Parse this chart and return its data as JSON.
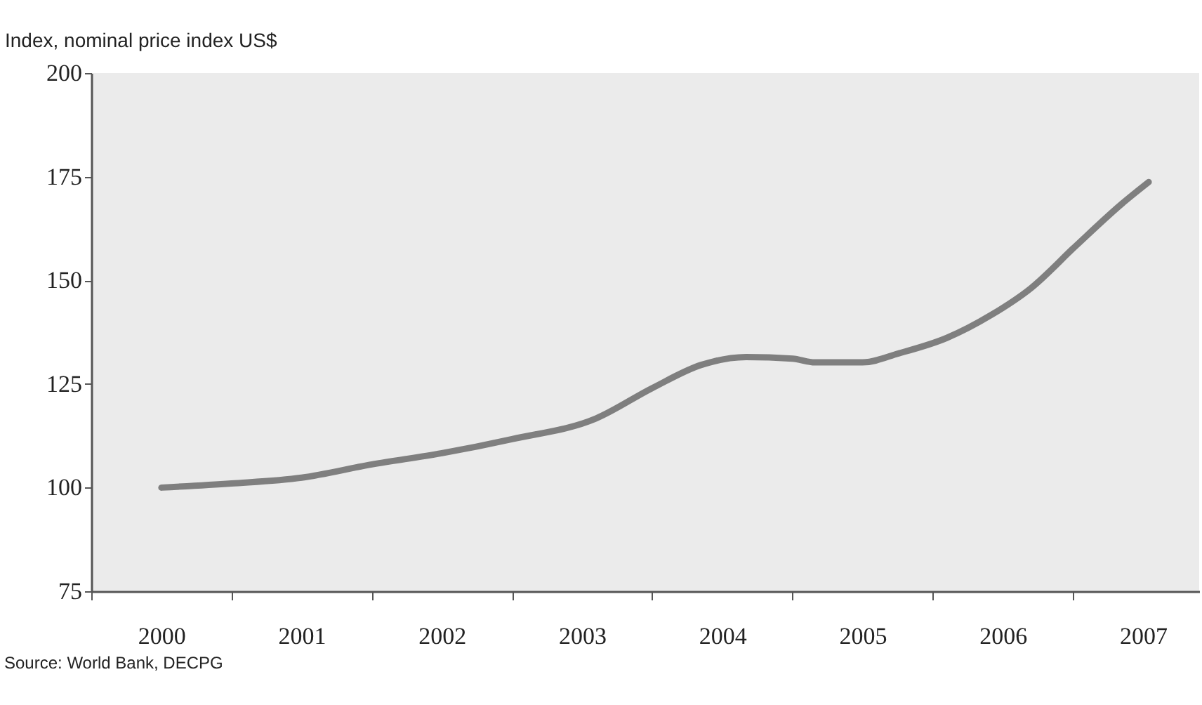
{
  "chart_data": {
    "type": "line",
    "ylabel": "Index, nominal price index US$",
    "annotations": [
      "Source: World Bank, DECPG"
    ],
    "x": [
      2000,
      2000.5,
      2001,
      2001.5,
      2002,
      2002.5,
      2003.1,
      2003.5,
      2003.85,
      2004.17,
      2004.5,
      2004.66,
      2005,
      2005.26,
      2005.6,
      2005.92,
      2006.2,
      2006.52,
      2006.85,
      2007.04
    ],
    "series": [
      {
        "color": "#7f7f7f",
        "values": [
          100,
          101,
          102.4,
          105.6,
          108.3,
          111.7,
          116.7,
          124,
          129.6,
          131.5,
          131.1,
          130.2,
          130.2,
          132.4,
          136.1,
          141.7,
          148.1,
          158.3,
          168.5,
          173.7
        ]
      }
    ],
    "xlim": [
      1999.5,
      2007.4
    ],
    "xticks": [
      {
        "value": 1999.5,
        "label": null
      },
      2000,
      {
        "value": 2000.5,
        "label": null
      },
      2001,
      {
        "value": 2001.5,
        "label": null
      },
      2002,
      {
        "value": 2002.5,
        "label": null
      },
      2003,
      {
        "value": 2003.5,
        "label": null
      },
      2004,
      {
        "value": 2004.5,
        "label": null
      },
      2005,
      {
        "value": 2005.5,
        "label": null
      },
      2006,
      {
        "value": 2006.5,
        "label": null
      },
      2007
    ],
    "ylim": [
      75,
      200
    ],
    "yticks": [
      75,
      100,
      125,
      150,
      175,
      200
    ],
    "grid": false,
    "legend": false,
    "marker": "none",
    "line_style": "solid"
  }
}
